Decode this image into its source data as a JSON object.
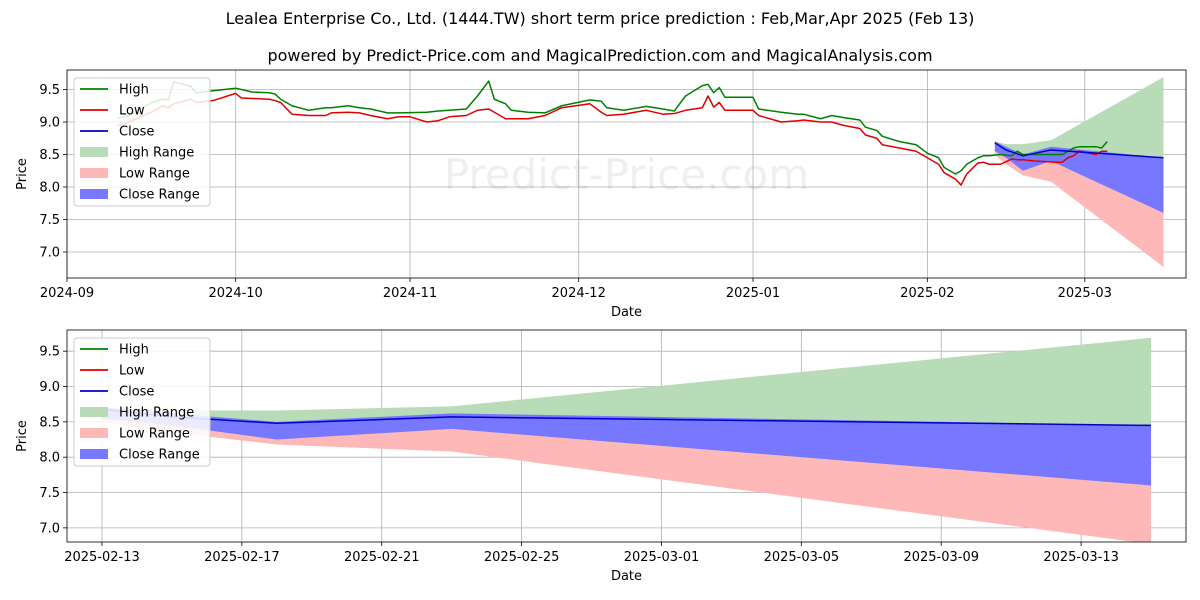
{
  "title": "Lealea Enterprise Co., Ltd. (1444.TW) short term price prediction : Feb,Mar,Apr 2025 (Feb 13)",
  "subtitle": "powered by Predict-Price.com and MagicalPrediction.com and MagicalAnalysis.com",
  "watermark": "Predict-Price.com",
  "colors": {
    "high": "#008000",
    "low": "#e00000",
    "close": "#0000cc",
    "high_range": "#b7dcb7",
    "low_range": "#ffb8b8",
    "close_range": "#7777ff"
  },
  "legend": [
    "High",
    "Low",
    "Close",
    "High Range",
    "Low Range",
    "Close Range"
  ],
  "chart_data": [
    {
      "type": "line",
      "xlabel": "Date",
      "ylabel": "Price",
      "ylim": [
        6.6,
        9.8
      ],
      "xlim": [
        "2024-09-01",
        "2025-03-19"
      ],
      "yticks": [
        "7.0",
        "7.5",
        "8.0",
        "8.5",
        "9.0",
        "9.5"
      ],
      "xticks": [
        [
          "2024-09-01",
          "2024-09"
        ],
        [
          "2024-10-01",
          "2024-10"
        ],
        [
          "2024-11-01",
          "2024-11"
        ],
        [
          "2024-12-01",
          "2024-12"
        ],
        [
          "2025-01-01",
          "2025-01"
        ],
        [
          "2025-02-01",
          "2025-02"
        ],
        [
          "2025-03-01",
          "2025-03"
        ]
      ],
      "grid": true,
      "legend_position": "upper-left",
      "high": [
        [
          "2024-09-10",
          9.06
        ],
        [
          "2024-09-12",
          9.1
        ],
        [
          "2024-09-16",
          9.3
        ],
        [
          "2024-09-18",
          9.35
        ],
        [
          "2024-09-19",
          9.34
        ],
        [
          "2024-09-20",
          9.62
        ],
        [
          "2024-09-23",
          9.55
        ],
        [
          "2024-09-24",
          9.45
        ],
        [
          "2024-09-27",
          9.48
        ],
        [
          "2024-10-01",
          9.52
        ],
        [
          "2024-10-04",
          9.46
        ],
        [
          "2024-10-07",
          9.45
        ],
        [
          "2024-10-08",
          9.43
        ],
        [
          "2024-10-09",
          9.35
        ],
        [
          "2024-10-11",
          9.25
        ],
        [
          "2024-10-14",
          9.18
        ],
        [
          "2024-10-17",
          9.22
        ],
        [
          "2024-10-18",
          9.22
        ],
        [
          "2024-10-21",
          9.25
        ],
        [
          "2024-10-23",
          9.22
        ],
        [
          "2024-10-25",
          9.2
        ],
        [
          "2024-10-28",
          9.14
        ],
        [
          "2024-10-30",
          9.14
        ],
        [
          "2024-11-04",
          9.15
        ],
        [
          "2024-11-06",
          9.17
        ],
        [
          "2024-11-08",
          9.18
        ],
        [
          "2024-11-11",
          9.2
        ],
        [
          "2024-11-13",
          9.4
        ],
        [
          "2024-11-15",
          9.63
        ],
        [
          "2024-11-16",
          9.35
        ],
        [
          "2024-11-18",
          9.28
        ],
        [
          "2024-11-19",
          9.18
        ],
        [
          "2024-11-22",
          9.15
        ],
        [
          "2024-11-25",
          9.14
        ],
        [
          "2024-11-28",
          9.25
        ],
        [
          "2024-12-03",
          9.34
        ],
        [
          "2024-12-05",
          9.32
        ],
        [
          "2024-12-06",
          9.22
        ],
        [
          "2024-12-09",
          9.18
        ],
        [
          "2024-12-13",
          9.24
        ],
        [
          "2024-12-16",
          9.2
        ],
        [
          "2024-12-18",
          9.17
        ],
        [
          "2024-12-20",
          9.4
        ],
        [
          "2024-12-23",
          9.56
        ],
        [
          "2024-12-24",
          9.58
        ],
        [
          "2024-12-25",
          9.45
        ],
        [
          "2024-12-26",
          9.53
        ],
        [
          "2024-12-27",
          9.38
        ],
        [
          "2025-01-01",
          9.38
        ],
        [
          "2025-01-02",
          9.2
        ],
        [
          "2025-01-06",
          9.15
        ],
        [
          "2025-01-09",
          9.12
        ],
        [
          "2025-01-10",
          9.12
        ],
        [
          "2025-01-13",
          9.05
        ],
        [
          "2025-01-15",
          9.1
        ],
        [
          "2025-01-17",
          9.07
        ],
        [
          "2025-01-20",
          9.03
        ],
        [
          "2025-01-21",
          8.92
        ],
        [
          "2025-01-23",
          8.87
        ],
        [
          "2025-01-24",
          8.78
        ],
        [
          "2025-01-27",
          8.7
        ],
        [
          "2025-01-30",
          8.65
        ],
        [
          "2025-02-01",
          8.52
        ],
        [
          "2025-02-03",
          8.45
        ],
        [
          "2025-02-04",
          8.3
        ],
        [
          "2025-02-06",
          8.2
        ],
        [
          "2025-02-07",
          8.25
        ],
        [
          "2025-02-08",
          8.35
        ],
        [
          "2025-02-10",
          8.45
        ],
        [
          "2025-02-11",
          8.48
        ],
        [
          "2025-02-12",
          8.48
        ],
        [
          "2025-02-14",
          8.5
        ],
        [
          "2025-02-16",
          8.48
        ],
        [
          "2025-02-17",
          8.55
        ],
        [
          "2025-02-18",
          8.5
        ],
        [
          "2025-02-20",
          8.5
        ],
        [
          "2025-02-24",
          8.5
        ],
        [
          "2025-02-25",
          8.5
        ],
        [
          "2025-02-26",
          8.55
        ],
        [
          "2025-02-27",
          8.6
        ],
        [
          "2025-02-28",
          8.62
        ],
        [
          "2025-03-03",
          8.62
        ],
        [
          "2025-03-04",
          8.6
        ],
        [
          "2025-03-05",
          8.7
        ]
      ],
      "low": [
        [
          "2024-09-10",
          8.95
        ],
        [
          "2024-09-12",
          9.0
        ],
        [
          "2024-09-16",
          9.15
        ],
        [
          "2024-09-18",
          9.25
        ],
        [
          "2024-09-19",
          9.22
        ],
        [
          "2024-09-20",
          9.28
        ],
        [
          "2024-09-23",
          9.35
        ],
        [
          "2024-09-24",
          9.3
        ],
        [
          "2024-09-27",
          9.33
        ],
        [
          "2024-10-01",
          9.44
        ],
        [
          "2024-10-02",
          9.37
        ],
        [
          "2024-10-07",
          9.35
        ],
        [
          "2024-10-08",
          9.33
        ],
        [
          "2024-10-09",
          9.3
        ],
        [
          "2024-10-11",
          9.12
        ],
        [
          "2024-10-14",
          9.1
        ],
        [
          "2024-10-17",
          9.1
        ],
        [
          "2024-10-18",
          9.14
        ],
        [
          "2024-10-21",
          9.15
        ],
        [
          "2024-10-23",
          9.14
        ],
        [
          "2024-10-25",
          9.1
        ],
        [
          "2024-10-28",
          9.05
        ],
        [
          "2024-10-30",
          9.08
        ],
        [
          "2024-11-01",
          9.08
        ],
        [
          "2024-11-04",
          9.0
        ],
        [
          "2024-11-06",
          9.02
        ],
        [
          "2024-11-08",
          9.08
        ],
        [
          "2024-11-11",
          9.1
        ],
        [
          "2024-11-13",
          9.18
        ],
        [
          "2024-11-15",
          9.2
        ],
        [
          "2024-11-16",
          9.15
        ],
        [
          "2024-11-18",
          9.05
        ],
        [
          "2024-11-19",
          9.05
        ],
        [
          "2024-11-22",
          9.05
        ],
        [
          "2024-11-25",
          9.1
        ],
        [
          "2024-11-28",
          9.22
        ],
        [
          "2024-12-03",
          9.28
        ],
        [
          "2024-12-05",
          9.15
        ],
        [
          "2024-12-06",
          9.1
        ],
        [
          "2024-12-09",
          9.12
        ],
        [
          "2024-12-13",
          9.18
        ],
        [
          "2024-12-16",
          9.12
        ],
        [
          "2024-12-18",
          9.13
        ],
        [
          "2024-12-20",
          9.18
        ],
        [
          "2024-12-23",
          9.22
        ],
        [
          "2024-12-24",
          9.4
        ],
        [
          "2024-12-25",
          9.23
        ],
        [
          "2024-12-26",
          9.3
        ],
        [
          "2024-12-27",
          9.18
        ],
        [
          "2025-01-01",
          9.18
        ],
        [
          "2025-01-02",
          9.1
        ],
        [
          "2025-01-06",
          9.0
        ],
        [
          "2025-01-09",
          9.02
        ],
        [
          "2025-01-10",
          9.03
        ],
        [
          "2025-01-13",
          9.0
        ],
        [
          "2025-01-15",
          9.0
        ],
        [
          "2025-01-17",
          8.95
        ],
        [
          "2025-01-20",
          8.9
        ],
        [
          "2025-01-21",
          8.8
        ],
        [
          "2025-01-23",
          8.75
        ],
        [
          "2025-01-24",
          8.65
        ],
        [
          "2025-01-27",
          8.6
        ],
        [
          "2025-01-30",
          8.55
        ],
        [
          "2025-02-01",
          8.45
        ],
        [
          "2025-02-03",
          8.35
        ],
        [
          "2025-02-04",
          8.22
        ],
        [
          "2025-02-06",
          8.12
        ],
        [
          "2025-02-07",
          8.03
        ],
        [
          "2025-02-08",
          8.2
        ],
        [
          "2025-02-10",
          8.37
        ],
        [
          "2025-02-11",
          8.38
        ],
        [
          "2025-02-12",
          8.35
        ],
        [
          "2025-02-14",
          8.35
        ],
        [
          "2025-02-16",
          8.43
        ],
        [
          "2025-02-17",
          8.42
        ],
        [
          "2025-02-18",
          8.42
        ],
        [
          "2025-02-20",
          8.4
        ],
        [
          "2025-02-24",
          8.38
        ],
        [
          "2025-02-25",
          8.38
        ],
        [
          "2025-02-26",
          8.45
        ],
        [
          "2025-02-27",
          8.48
        ],
        [
          "2025-02-28",
          8.55
        ],
        [
          "2025-03-03",
          8.5
        ],
        [
          "2025-03-04",
          8.55
        ],
        [
          "2025-03-05",
          8.55
        ]
      ],
      "forecast_close": [
        [
          "2025-02-13",
          8.68
        ],
        [
          "2025-02-15",
          8.57
        ],
        [
          "2025-02-18",
          8.48
        ],
        [
          "2025-02-23",
          8.57
        ],
        [
          "2025-03-15",
          8.45
        ]
      ],
      "high_range": [
        [
          "2025-02-13",
          8.7,
          8.55
        ],
        [
          "2025-02-15",
          8.66,
          8.4
        ],
        [
          "2025-02-18",
          8.66,
          8.25
        ],
        [
          "2025-02-23",
          8.72,
          8.4
        ],
        [
          "2025-03-15",
          9.69,
          7.6
        ]
      ],
      "low_range": [
        [
          "2025-02-13",
          8.6,
          8.5
        ],
        [
          "2025-02-15",
          8.5,
          8.35
        ],
        [
          "2025-02-18",
          8.42,
          8.18
        ],
        [
          "2025-02-23",
          8.4,
          8.08
        ],
        [
          "2025-03-15",
          7.6,
          6.77
        ]
      ],
      "close_range": [
        [
          "2025-02-13",
          8.7,
          8.55
        ],
        [
          "2025-02-15",
          8.62,
          8.45
        ],
        [
          "2025-02-18",
          8.5,
          8.25
        ],
        [
          "2025-02-23",
          8.62,
          8.4
        ],
        [
          "2025-03-15",
          8.45,
          7.6
        ]
      ]
    },
    {
      "type": "line",
      "xlabel": "Date",
      "ylabel": "Price",
      "ylim": [
        6.8,
        9.8
      ],
      "xlim": [
        "2025-02-12",
        "2025-03-16"
      ],
      "yticks": [
        "7.0",
        "7.5",
        "8.0",
        "8.5",
        "9.0",
        "9.5"
      ],
      "xticks": [
        [
          "2025-02-13",
          "2025-02-13"
        ],
        [
          "2025-02-17",
          "2025-02-17"
        ],
        [
          "2025-02-21",
          "2025-02-21"
        ],
        [
          "2025-02-25",
          "2025-02-25"
        ],
        [
          "2025-03-01",
          "2025-03-01"
        ],
        [
          "2025-03-05",
          "2025-03-05"
        ],
        [
          "2025-03-09",
          "2025-03-09"
        ],
        [
          "2025-03-13",
          "2025-03-13"
        ]
      ],
      "grid": true,
      "legend_position": "upper-left",
      "forecast_close": [
        [
          "2025-02-13",
          8.68
        ],
        [
          "2025-02-15",
          8.57
        ],
        [
          "2025-02-18",
          8.48
        ],
        [
          "2025-02-23",
          8.57
        ],
        [
          "2025-03-15",
          8.45
        ]
      ],
      "high_range": [
        [
          "2025-02-13",
          8.7,
          8.55
        ],
        [
          "2025-02-15",
          8.66,
          8.4
        ],
        [
          "2025-02-18",
          8.66,
          8.25
        ],
        [
          "2025-02-23",
          8.72,
          8.4
        ],
        [
          "2025-03-15",
          9.69,
          7.6
        ]
      ],
      "low_range": [
        [
          "2025-02-13",
          8.6,
          8.5
        ],
        [
          "2025-02-15",
          8.5,
          8.35
        ],
        [
          "2025-02-18",
          8.42,
          8.18
        ],
        [
          "2025-02-23",
          8.4,
          8.08
        ],
        [
          "2025-03-15",
          7.6,
          6.77
        ]
      ],
      "close_range": [
        [
          "2025-02-13",
          8.7,
          8.55
        ],
        [
          "2025-02-15",
          8.62,
          8.45
        ],
        [
          "2025-02-18",
          8.5,
          8.25
        ],
        [
          "2025-02-23",
          8.62,
          8.4
        ],
        [
          "2025-03-15",
          8.45,
          7.6
        ]
      ]
    }
  ]
}
